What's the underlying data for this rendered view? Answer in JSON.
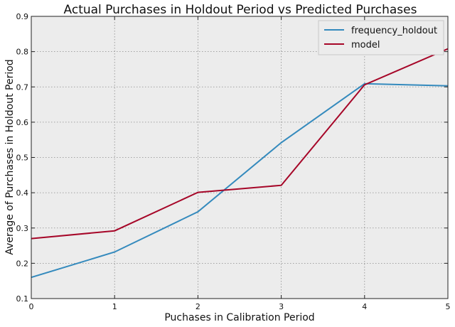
{
  "chart_data": {
    "type": "line",
    "title": "Actual Purchases in Holdout Period vs Predicted Purchases",
    "xlabel": "Puchases in Calibration Period",
    "ylabel": "Average of Purchases in Holdout Period",
    "xlim": [
      0,
      5
    ],
    "ylim": [
      0.1,
      0.9
    ],
    "xticks": [
      0,
      1,
      2,
      3,
      4,
      5
    ],
    "yticks": [
      0.1,
      0.2,
      0.3,
      0.4,
      0.5,
      0.6,
      0.7,
      0.8,
      0.9
    ],
    "grid": true,
    "legend_position": "top-right",
    "background_color": "#ececec",
    "x": [
      0,
      1,
      2,
      3,
      4,
      5
    ],
    "series": [
      {
        "name": "frequency_holdout",
        "color": "#348abd",
        "values": [
          0.16,
          0.232,
          0.346,
          0.542,
          0.709,
          0.703
        ]
      },
      {
        "name": "model",
        "color": "#a60628",
        "values": [
          0.27,
          0.292,
          0.401,
          0.421,
          0.706,
          0.808
        ]
      }
    ]
  }
}
